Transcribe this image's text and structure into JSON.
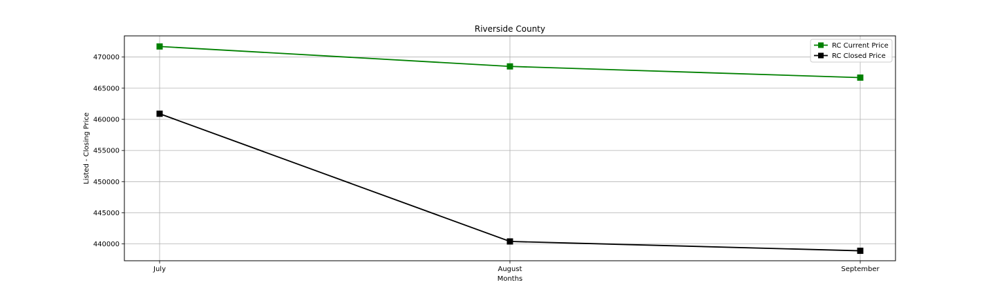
{
  "chart_data": {
    "type": "line",
    "title": "Riverside County",
    "xlabel": "Months",
    "ylabel": "Listed - Closing Price",
    "categories": [
      "July",
      "August",
      "September"
    ],
    "ylim": [
      437300,
      473400
    ],
    "yticks": [
      440000,
      445000,
      450000,
      455000,
      460000,
      465000,
      470000
    ],
    "grid": true,
    "legend_position": "top-right",
    "series": [
      {
        "name": "RC Current Price",
        "color": "#008000",
        "marker": "square",
        "values": [
          471700,
          468500,
          466700
        ]
      },
      {
        "name": "RC Closed Price",
        "color": "#000000",
        "marker": "square",
        "values": [
          460900,
          440400,
          438900
        ]
      }
    ]
  }
}
